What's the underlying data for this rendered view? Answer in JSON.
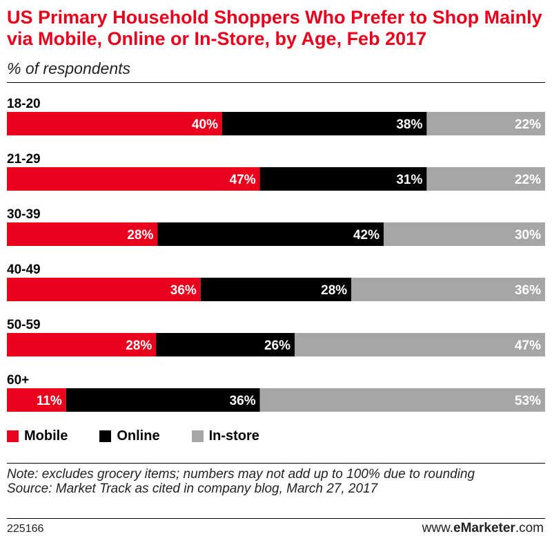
{
  "header": {
    "title": "US Primary Household Shoppers Who Prefer to Shop Mainly via Mobile, Online or In-Store, by Age, Feb 2017",
    "subtitle": "% of respondents"
  },
  "chart_data": {
    "type": "bar",
    "orientation": "horizontal",
    "stacked": true,
    "categories": [
      "18-20",
      "21-29",
      "30-39",
      "40-49",
      "50-59",
      "60+"
    ],
    "series": [
      {
        "name": "Mobile",
        "color": "#e8001c",
        "values": [
          40,
          47,
          28,
          36,
          28,
          11
        ]
      },
      {
        "name": "Online",
        "color": "#000000",
        "values": [
          38,
          31,
          42,
          28,
          26,
          36
        ]
      },
      {
        "name": "In-store",
        "color": "#a6a6a6",
        "values": [
          22,
          22,
          30,
          36,
          47,
          53
        ]
      }
    ],
    "value_suffix": "%",
    "legend_position": "bottom-left"
  },
  "legend": {
    "items": [
      {
        "label": "Mobile",
        "color": "#e8001c"
      },
      {
        "label": "Online",
        "color": "#000000"
      },
      {
        "label": "In-store",
        "color": "#a6a6a6"
      }
    ]
  },
  "footer": {
    "note": "Note: excludes grocery items; numbers may not add up to 100% due to rounding",
    "source": "Source: Market Track as cited in company blog, March 27, 2017",
    "chart_id": "225166",
    "brand_prefix": "www.",
    "brand_name": "eMarketer",
    "brand_suffix": ".com"
  }
}
